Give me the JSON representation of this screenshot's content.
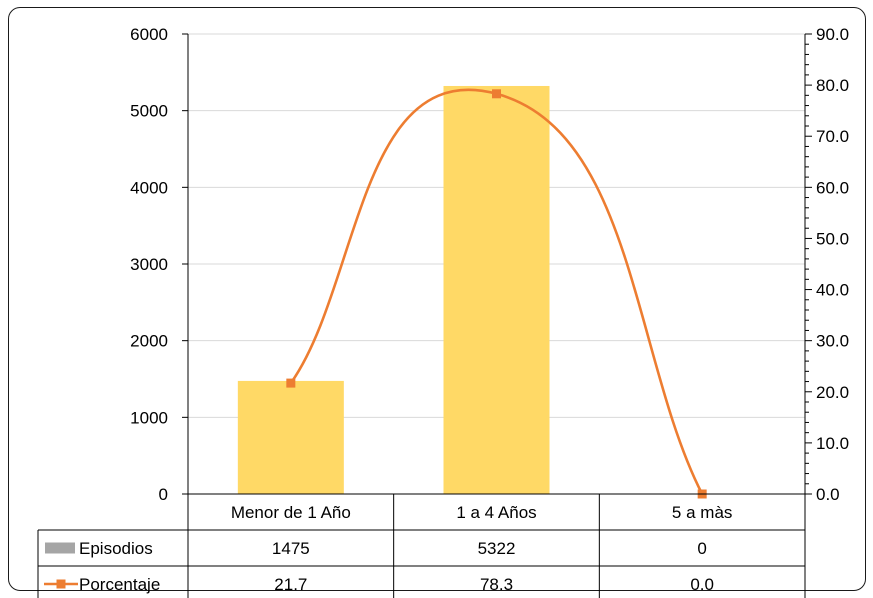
{
  "chart_data": {
    "type": "bar",
    "title": "",
    "categories": [
      "Menor de 1 Año",
      "1 a 4 Años",
      "5 a màs"
    ],
    "series": [
      {
        "name": "Episodios",
        "type": "bar",
        "axis": "left",
        "values": [
          1475,
          5322,
          0
        ],
        "color": "#FFD966"
      },
      {
        "name": "Porcentaje",
        "type": "line",
        "axis": "right",
        "smooth": true,
        "marker": "square",
        "values": [
          21.7,
          78.3,
          0.0
        ],
        "color": "#ED7D31"
      }
    ],
    "y_left": {
      "min": 0,
      "max": 6000,
      "step": 1000,
      "ticks": [
        "0",
        "1000",
        "2000",
        "3000",
        "4000",
        "5000",
        "6000"
      ]
    },
    "y_right": {
      "min": 0,
      "max": 90,
      "step": 10,
      "ticks": [
        "0.0",
        "10.0",
        "20.0",
        "30.0",
        "40.0",
        "50.0",
        "60.0",
        "70.0",
        "80.0",
        "90.0"
      ]
    },
    "grid": true,
    "legend": "data-table",
    "table": {
      "rows": [
        {
          "label": "Episodios",
          "key_color": "#A5A5A5",
          "cells": [
            "1475",
            "5322",
            "0"
          ]
        },
        {
          "label": "Porcentaje",
          "key_color": "#ED7D31",
          "cells": [
            "21.7",
            "78.3",
            "0.0"
          ]
        }
      ]
    }
  }
}
